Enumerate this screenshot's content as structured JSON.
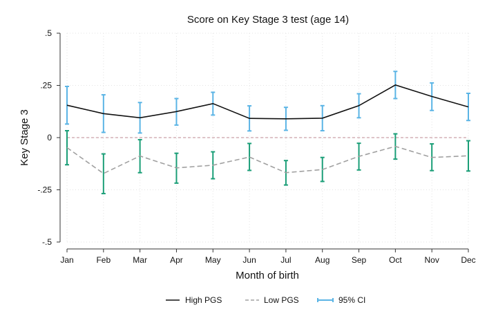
{
  "chart_data": {
    "type": "line",
    "title": "Score on Key Stage 3 test (age 14)",
    "xlabel": "Month of birth",
    "ylabel": "Key Stage 3",
    "categories": [
      "Jan",
      "Feb",
      "Mar",
      "Apr",
      "May",
      "Jun",
      "Jul",
      "Aug",
      "Sep",
      "Oct",
      "Nov",
      "Dec"
    ],
    "ylim": [
      -0.5,
      0.5
    ],
    "yticks": [
      {
        "value": 0.5,
        "label": ".5"
      },
      {
        "value": 0.25,
        "label": ".25"
      },
      {
        "value": 0,
        "label": "0"
      },
      {
        "value": -0.25,
        "label": "-.25"
      },
      {
        "value": -0.5,
        "label": "-.5"
      }
    ],
    "grid": true,
    "reference_line": 0,
    "legend_position": "bottom",
    "series": [
      {
        "name": "High PGS",
        "color": "#111111",
        "dash": "solid",
        "ci_color": "#5ab4e5",
        "values": [
          0.155,
          0.115,
          0.095,
          0.125,
          0.163,
          0.092,
          0.09,
          0.093,
          0.153,
          0.252,
          0.197,
          0.147
        ],
        "ci_low": [
          0.065,
          0.025,
          0.022,
          0.06,
          0.108,
          0.032,
          0.035,
          0.033,
          0.095,
          0.187,
          0.13,
          0.082
        ],
        "ci_high": [
          0.245,
          0.205,
          0.168,
          0.187,
          0.217,
          0.152,
          0.145,
          0.153,
          0.21,
          0.317,
          0.262,
          0.212
        ]
      },
      {
        "name": "Low PGS",
        "color": "#a0a0a0",
        "dash": "dashed",
        "ci_color": "#1a9e77",
        "values": [
          -0.048,
          -0.172,
          -0.088,
          -0.145,
          -0.132,
          -0.093,
          -0.168,
          -0.153,
          -0.09,
          -0.042,
          -0.095,
          -0.087
        ],
        "ci_low": [
          -0.13,
          -0.268,
          -0.168,
          -0.218,
          -0.197,
          -0.157,
          -0.227,
          -0.21,
          -0.155,
          -0.103,
          -0.158,
          -0.16
        ],
        "ci_high": [
          0.033,
          -0.078,
          -0.01,
          -0.075,
          -0.068,
          -0.028,
          -0.11,
          -0.095,
          -0.027,
          0.018,
          -0.03,
          -0.015
        ]
      }
    ],
    "legend": [
      {
        "label": "High PGS",
        "style": "solid",
        "color": "#111111"
      },
      {
        "label": "Low PGS",
        "style": "dashed",
        "color": "#a0a0a0"
      },
      {
        "label": "95% CI",
        "style": "ci",
        "color": "#5ab4e5"
      }
    ]
  }
}
